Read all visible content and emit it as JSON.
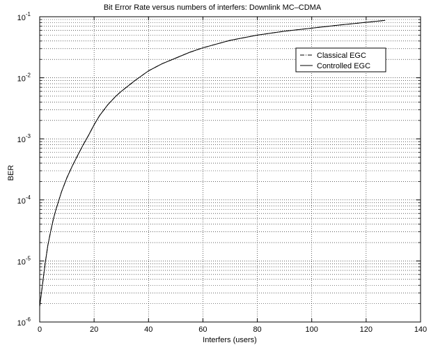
{
  "chart_data": {
    "type": "line",
    "title": "Bit Error Rate versus numbers of interfers: Downlink MC–CDMA",
    "xlabel": "Interfers (users)",
    "ylabel": "BER",
    "xlim": [
      0,
      140
    ],
    "ylim": [
      1e-06,
      0.1
    ],
    "yscale": "log",
    "grid": true,
    "legend_position": "top-right",
    "x_ticks": [
      0,
      20,
      40,
      60,
      80,
      100,
      120,
      140
    ],
    "x_tick_labels": [
      "0",
      "20",
      "40",
      "60",
      "80",
      "100",
      "120",
      "140"
    ],
    "y_tick_labels": [
      {
        "base": "10",
        "exp": "-6"
      },
      {
        "base": "10",
        "exp": "-5"
      },
      {
        "base": "10",
        "exp": "-4"
      },
      {
        "base": "10",
        "exp": "-3"
      },
      {
        "base": "10",
        "exp": "-2"
      },
      {
        "base": "10",
        "exp": "-1"
      }
    ],
    "series": [
      {
        "name": "Classical EGC",
        "style": "dash-dot",
        "color": "#000000",
        "x": [
          0,
          1,
          2,
          3,
          4,
          5,
          6,
          8,
          10,
          12,
          14,
          16,
          18,
          20,
          22,
          25,
          28,
          30,
          35,
          40,
          45,
          50,
          55,
          60,
          70,
          80,
          90,
          100,
          110,
          120,
          127
        ],
        "y": [
          1.8e-06,
          4e-06,
          9e-06,
          1.8e-05,
          3e-05,
          4.8e-05,
          7e-05,
          0.000135,
          0.00023,
          0.00036,
          0.00054,
          0.0008,
          0.00115,
          0.0017,
          0.0024,
          0.0036,
          0.005,
          0.006,
          0.009,
          0.013,
          0.017,
          0.021,
          0.026,
          0.031,
          0.041,
          0.05,
          0.058,
          0.065,
          0.073,
          0.081,
          0.087
        ]
      },
      {
        "name": "Controlled EGC",
        "style": "solid",
        "color": "#000000",
        "x": [
          0,
          1,
          2,
          3,
          4,
          5,
          6,
          8,
          10,
          12,
          14,
          16,
          18,
          20,
          22,
          25,
          28,
          30,
          35,
          40,
          45,
          50,
          55,
          60,
          70,
          80,
          90,
          100,
          110,
          120,
          127
        ],
        "y": [
          1.8e-06,
          4e-06,
          9e-06,
          1.8e-05,
          3e-05,
          4.8e-05,
          7e-05,
          0.000135,
          0.00023,
          0.00036,
          0.00054,
          0.0008,
          0.00115,
          0.0017,
          0.0024,
          0.0036,
          0.005,
          0.006,
          0.009,
          0.013,
          0.017,
          0.021,
          0.026,
          0.031,
          0.041,
          0.05,
          0.058,
          0.065,
          0.073,
          0.081,
          0.087
        ]
      }
    ]
  }
}
